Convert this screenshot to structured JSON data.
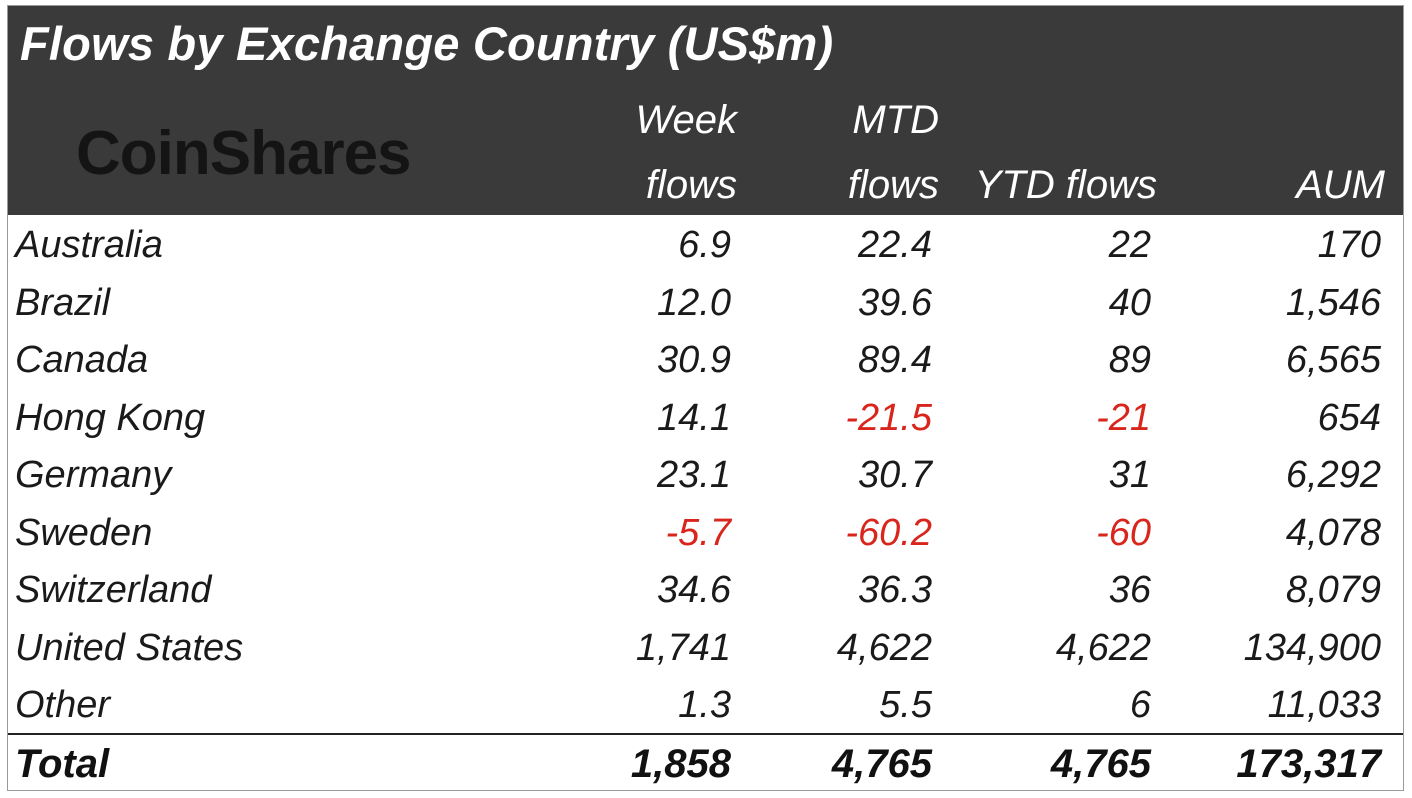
{
  "chart_data": {
    "type": "table",
    "title": "Flows by Exchange Country (US$m)",
    "logo": "CoinShares",
    "columns": [
      {
        "line1": "",
        "line2": ""
      },
      {
        "line1": "Week",
        "line2": "flows"
      },
      {
        "line1": "MTD",
        "line2": "flows"
      },
      {
        "line1": "",
        "line2": "YTD flows"
      },
      {
        "line1": "",
        "line2": "AUM"
      }
    ],
    "rows": [
      {
        "country": "Australia",
        "week": "6.9",
        "mtd": "22.4",
        "ytd": "22",
        "aum": "170"
      },
      {
        "country": "Brazil",
        "week": "12.0",
        "mtd": "39.6",
        "ytd": "40",
        "aum": "1,546"
      },
      {
        "country": "Canada",
        "week": "30.9",
        "mtd": "89.4",
        "ytd": "89",
        "aum": "6,565"
      },
      {
        "country": "Hong Kong",
        "week": "14.1",
        "mtd": "-21.5",
        "ytd": "-21",
        "aum": "654"
      },
      {
        "country": "Germany",
        "week": "23.1",
        "mtd": "30.7",
        "ytd": "31",
        "aum": "6,292"
      },
      {
        "country": "Sweden",
        "week": "-5.7",
        "mtd": "-60.2",
        "ytd": "-60",
        "aum": "4,078"
      },
      {
        "country": "Switzerland",
        "week": "34.6",
        "mtd": "36.3",
        "ytd": "36",
        "aum": "8,079"
      },
      {
        "country": "United States",
        "week": "1,741",
        "mtd": "4,622",
        "ytd": "4,622",
        "aum": "134,900"
      },
      {
        "country": "Other",
        "week": "1.3",
        "mtd": "5.5",
        "ytd": "6",
        "aum": "11,033"
      }
    ],
    "total": {
      "country": "Total",
      "week": "1,858",
      "mtd": "4,765",
      "ytd": "4,765",
      "aum": "173,317"
    },
    "colors": {
      "header_bg": "#3a3a3a",
      "header_text": "#ffffff",
      "negative": "#d9261c",
      "text": "#1a1a1a"
    }
  }
}
